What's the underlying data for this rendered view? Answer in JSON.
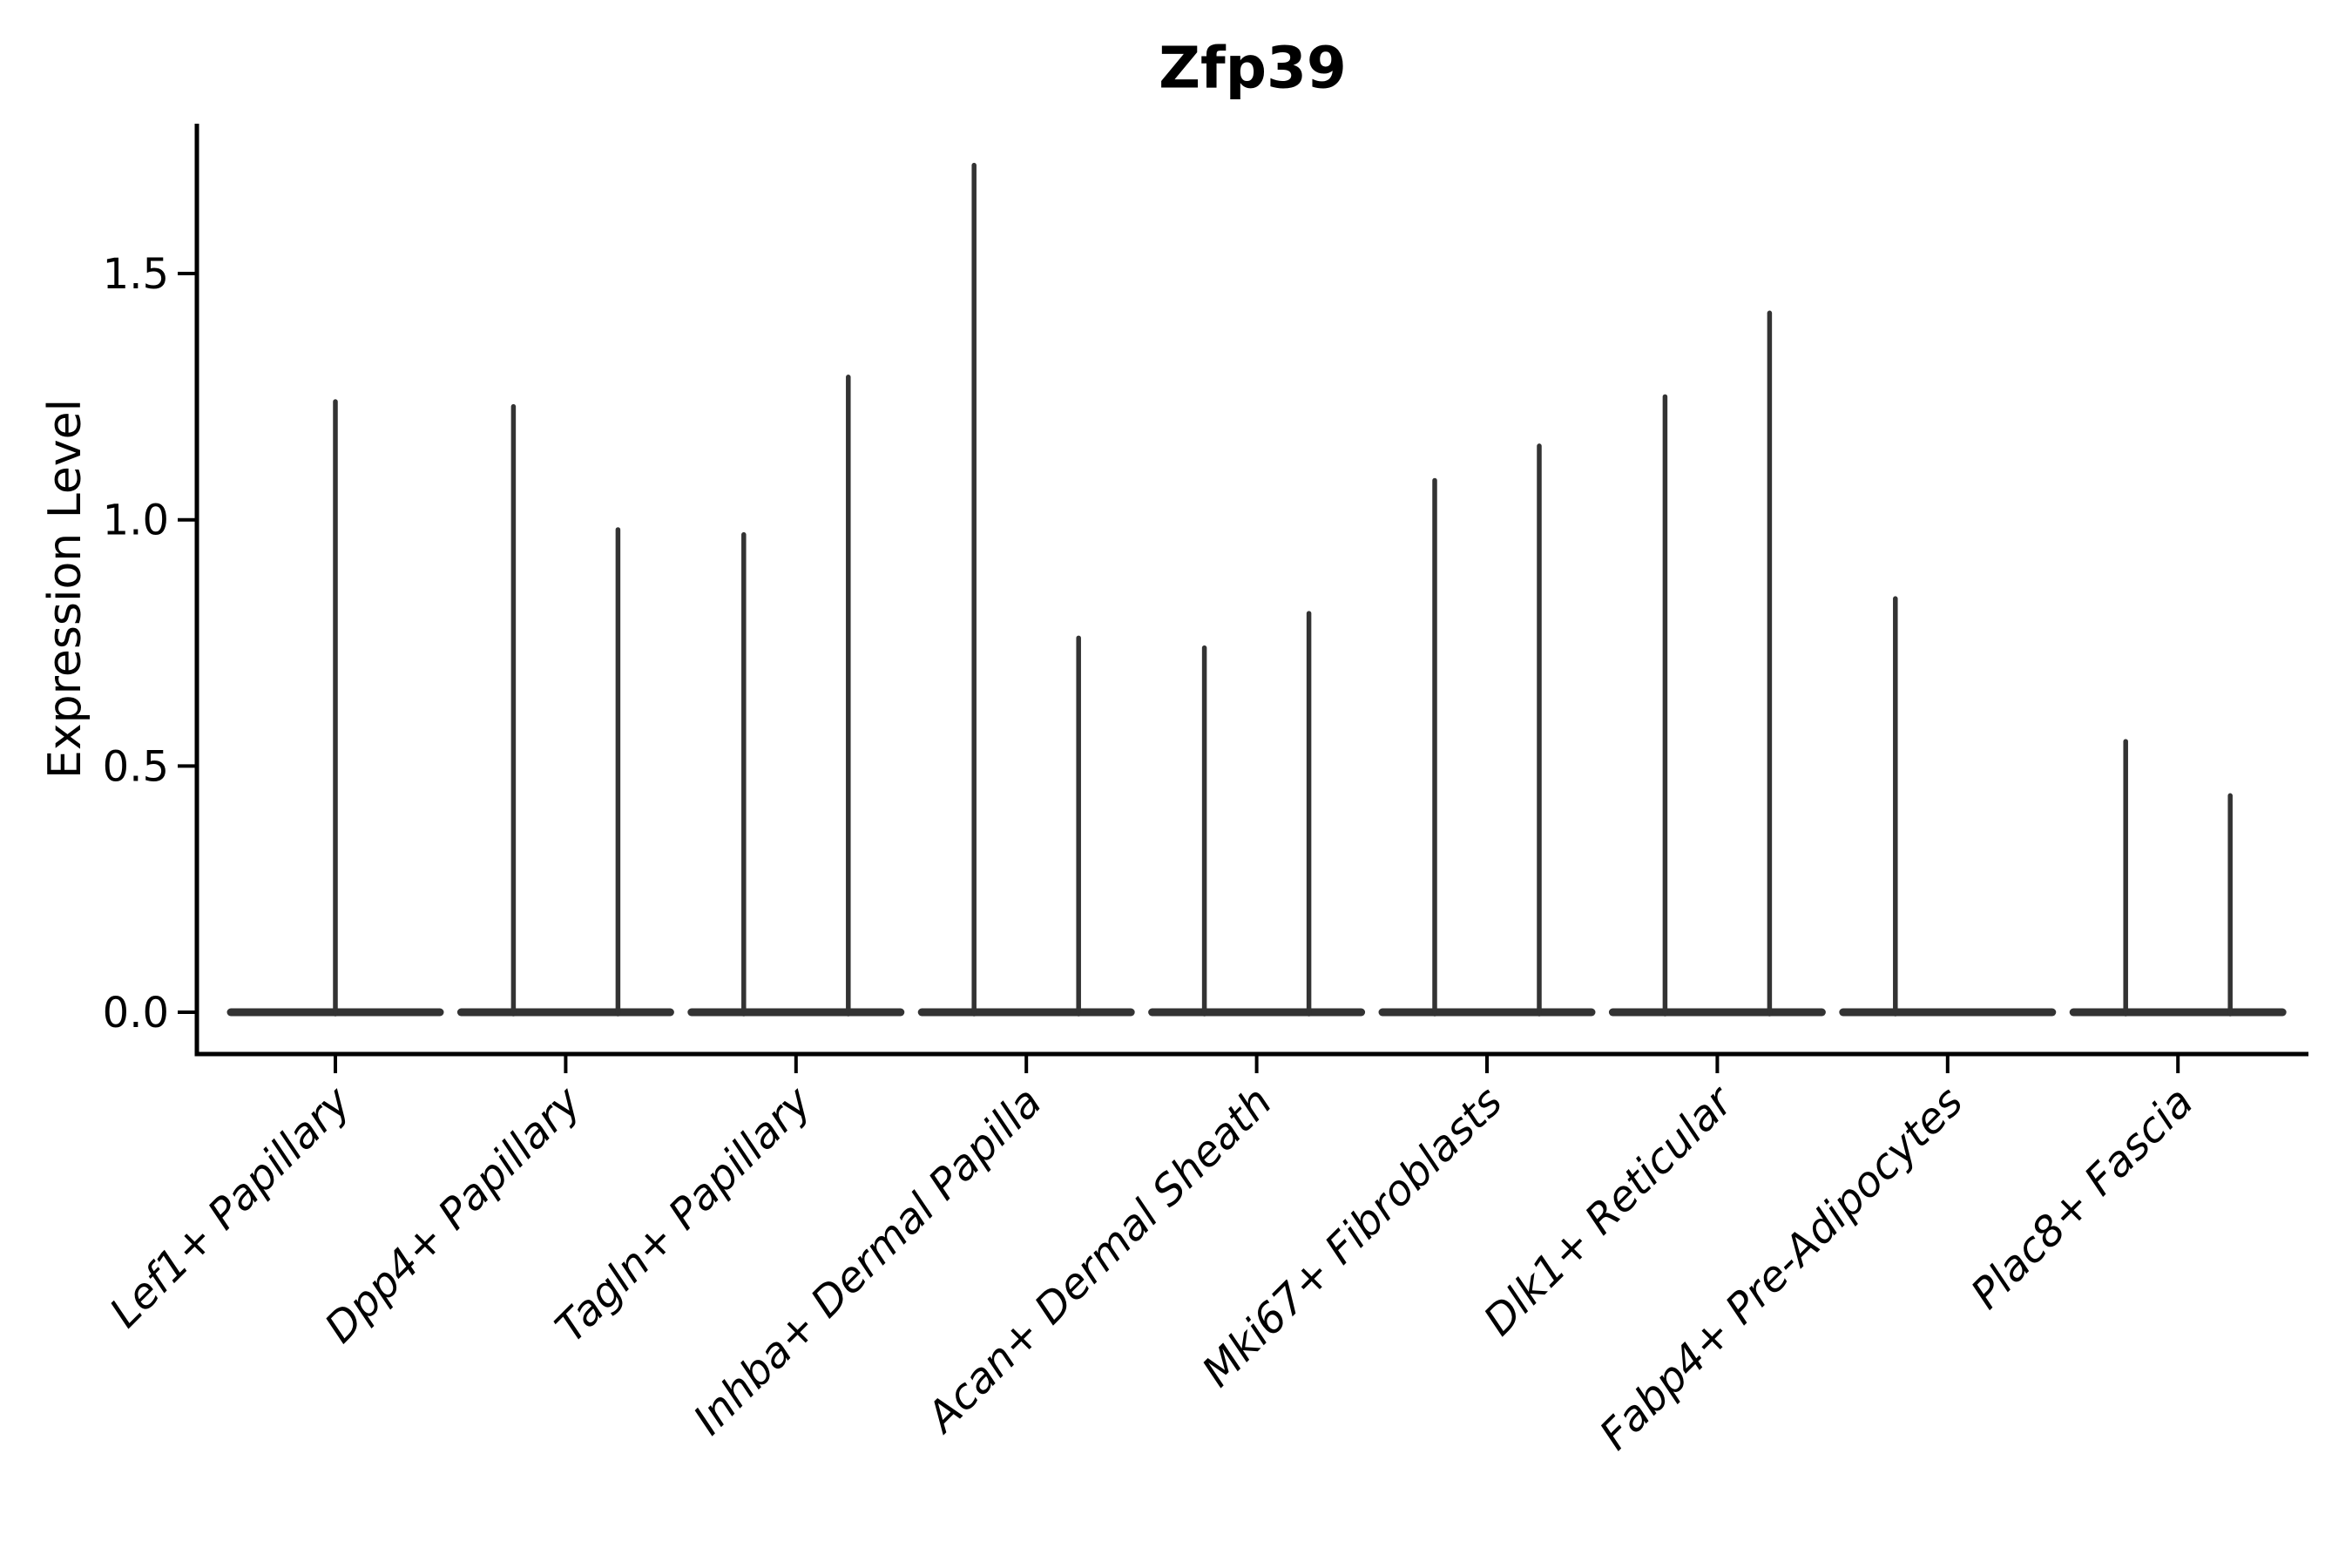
{
  "chart_data": {
    "type": "violin",
    "title": "Zfp39",
    "ylabel": "Expression Level",
    "xlabel": "",
    "yticks": [
      0.0,
      0.5,
      1.0,
      1.5
    ],
    "ytick_labels": [
      "0.0",
      "0.5",
      "1.0",
      "1.5"
    ],
    "ylim": [
      -0.085,
      1.805
    ],
    "grid": false,
    "legend": null,
    "colors": {
      "violin": "#333333",
      "axis": "#000000",
      "text": "#000000",
      "background": "#ffffff"
    },
    "categories": [
      "Lef1+ Papillary",
      "Dpp4+ Papillary",
      "Tagln+ Papillary",
      "Inhba+ Dermal Papilla",
      "Acan+ Dermal Sheath",
      "Mki67+ Fibroblasts",
      "Dlk1+ Reticular",
      "Fabp4+ Pre-Adipocytes",
      "Plac8+ Fascia"
    ],
    "series": [
      {
        "category": "Lef1+ Papillary",
        "violins": [
          {
            "pos": "center",
            "max": 1.24
          }
        ]
      },
      {
        "category": "Dpp4+ Papillary",
        "violins": [
          {
            "pos": "left",
            "max": 1.23
          },
          {
            "pos": "right",
            "max": 0.98
          }
        ]
      },
      {
        "category": "Tagln+ Papillary",
        "violins": [
          {
            "pos": "left",
            "max": 0.97
          },
          {
            "pos": "right",
            "max": 1.29
          }
        ]
      },
      {
        "category": "Inhba+ Dermal Papilla",
        "violins": [
          {
            "pos": "left",
            "max": 1.72
          },
          {
            "pos": "right",
            "max": 0.76
          }
        ]
      },
      {
        "category": "Acan+ Dermal Sheath",
        "violins": [
          {
            "pos": "left",
            "max": 0.74
          },
          {
            "pos": "right",
            "max": 0.81
          }
        ]
      },
      {
        "category": "Mki67+ Fibroblasts",
        "violins": [
          {
            "pos": "left",
            "max": 1.08
          },
          {
            "pos": "right",
            "max": 1.15
          }
        ]
      },
      {
        "category": "Dlk1+ Reticular",
        "violins": [
          {
            "pos": "left",
            "max": 1.25
          },
          {
            "pos": "right",
            "max": 1.42
          }
        ]
      },
      {
        "category": "Fabp4+ Pre-Adipocytes",
        "violins": [
          {
            "pos": "left",
            "max": 0.84
          }
        ]
      },
      {
        "category": "Plac8+ Fascia",
        "violins": [
          {
            "pos": "left",
            "max": 0.55
          },
          {
            "pos": "right",
            "max": 0.44
          }
        ]
      }
    ]
  }
}
